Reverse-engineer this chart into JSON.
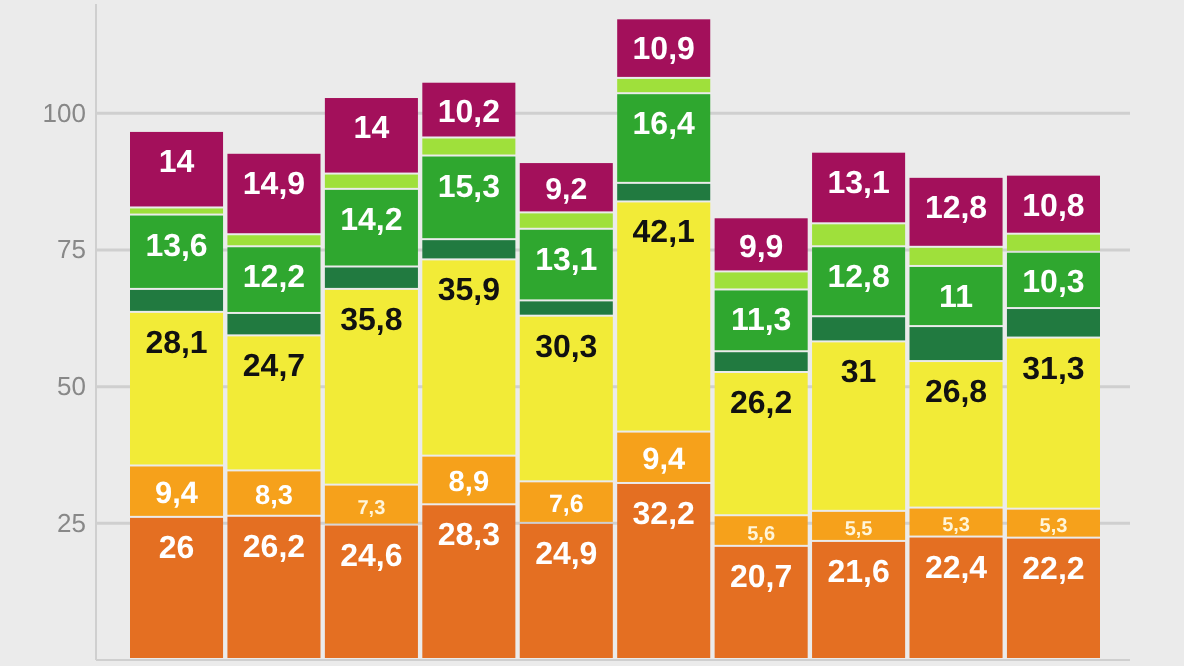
{
  "chart_data": {
    "type": "bar",
    "stacked": true,
    "categories": [
      null,
      null,
      null,
      null,
      null,
      null,
      null,
      null,
      null,
      null
    ],
    "ylim": [
      0,
      120
    ],
    "yticks": [
      25,
      50,
      75,
      100
    ],
    "grid": "y",
    "tick_labels": "y",
    "series": [
      {
        "color": "#e46f22",
        "values": [
          26,
          26.2,
          24.6,
          28.3,
          24.9,
          32.2,
          20.7,
          21.6,
          22.4,
          22.2
        ],
        "value_labels": [
          "26",
          "26,2",
          "24,6",
          "28,3",
          "24,9",
          "32,2",
          "20,7",
          "21,6",
          "22,4",
          "22,2"
        ]
      },
      {
        "color": "#f6a11b",
        "values": [
          9.4,
          8.3,
          7.3,
          8.9,
          7.6,
          9.4,
          5.6,
          5.5,
          5.3,
          5.3
        ],
        "value_labels": [
          "9,4",
          "8,3",
          "7,3",
          "8,9",
          "7,6",
          "9,4",
          "5,6",
          "5,5",
          "5,3",
          "5,3"
        ]
      },
      {
        "color": "#f2eb37",
        "values": [
          28.1,
          24.7,
          35.8,
          35.9,
          30.3,
          42.1,
          26.2,
          31,
          26.8,
          31.3
        ],
        "value_labels": [
          "28,1",
          "24,7",
          "35,8",
          "35,9",
          "30,3",
          "42,1",
          "26,2",
          "31",
          "26,8",
          "31,3"
        ]
      },
      {
        "color": "#217a40",
        "values": [
          4.2,
          4.1,
          4.1,
          3.7,
          2.8,
          3.4,
          3.8,
          4.6,
          6.4,
          5.4
        ]
      },
      {
        "color": "#2fa72f",
        "values": [
          13.6,
          12.2,
          14.2,
          15.3,
          13.1,
          16.4,
          11.3,
          12.8,
          11,
          10.3
        ],
        "value_labels": [
          "13,6",
          "12,2",
          "14,2",
          "15,3",
          "13,1",
          "16,4",
          "11,3",
          "12,8",
          "11",
          "10,3"
        ]
      },
      {
        "color": "#9fe03b",
        "values": [
          1.3,
          2.2,
          2.8,
          3.3,
          3.0,
          2.8,
          3.3,
          4.2,
          3.5,
          3.3
        ]
      },
      {
        "color": "#a3105b",
        "values": [
          14,
          14.9,
          14,
          10.2,
          9.2,
          10.9,
          9.9,
          13.1,
          12.8,
          10.8
        ],
        "value_labels": [
          "14",
          "14,9",
          "14",
          "10,2",
          "9,2",
          "10,9",
          "9,9",
          "13,1",
          "12,8",
          "10,8"
        ]
      }
    ]
  }
}
